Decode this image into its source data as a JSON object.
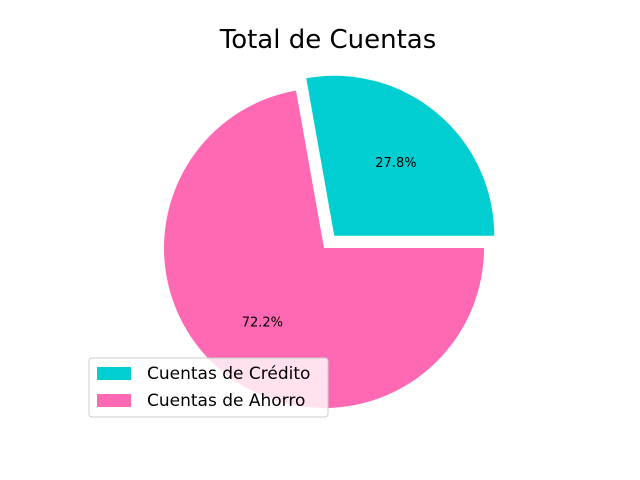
{
  "chart_data": {
    "type": "pie",
    "title": "Total de Cuentas",
    "slices": [
      {
        "label": "Cuentas de Crédito",
        "value": 27.8,
        "pct_label": "27.8%",
        "color": "#00CED1",
        "exploded": true
      },
      {
        "label": "Cuentas de Ahorro",
        "value": 72.2,
        "pct_label": "72.2%",
        "color": "#FF69B4",
        "exploded": false
      }
    ],
    "start_angle_deg": 0,
    "direction": "counterclockwise",
    "legend_position": "lower-left",
    "background": "#FFFFFF"
  }
}
